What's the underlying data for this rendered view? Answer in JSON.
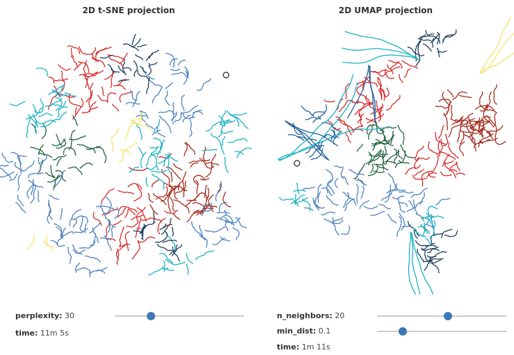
{
  "tsne": {
    "title": "2D t-SNE projection",
    "perplexity_label": "perplexity:",
    "perplexity_value": "30",
    "perplexity_fraction": 0.28,
    "time_label": "time:",
    "time_value": "11m 5s"
  },
  "umap": {
    "title": "2D UMAP projection",
    "n_neighbors_label": "n_neighbors:",
    "n_neighbors_value": "20",
    "n_neighbors_fraction": 0.55,
    "min_dist_label": "min_dist:",
    "min_dist_value": "0.1",
    "min_dist_fraction": 0.2,
    "time_label": "time:",
    "time_value": "1m 11s"
  },
  "colors": {
    "red": "#d62728",
    "dark_red": "#a3281a",
    "blue": "#1f5f99",
    "light_blue": "#4a7fc1",
    "cyan": "#17b0c4",
    "dark_green": "#1d5e3a",
    "yellow": "#f2e36a",
    "navy": "#1a3a5c",
    "slider_thumb": "#3a78b8"
  }
}
